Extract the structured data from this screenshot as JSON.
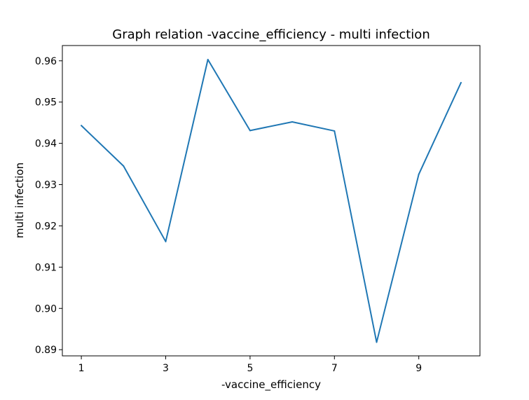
{
  "chart_data": {
    "type": "line",
    "title": "Graph relation -vaccine_efficiency - multi infection",
    "xlabel": "-vaccine_efficiency",
    "ylabel": "multi infection",
    "xlim": [
      0.55,
      10.45
    ],
    "ylim": [
      0.8885,
      0.9637
    ],
    "x_ticks": [
      1,
      3,
      5,
      7,
      9
    ],
    "x_tick_labels": [
      "1",
      "3",
      "5",
      "7",
      "9"
    ],
    "y_ticks": [
      0.89,
      0.9,
      0.91,
      0.92,
      0.93,
      0.94,
      0.95,
      0.96
    ],
    "y_tick_labels": [
      "0.89",
      "0.90",
      "0.91",
      "0.92",
      "0.93",
      "0.94",
      "0.95",
      "0.96"
    ],
    "grid": false,
    "series": [
      {
        "color": "#1f77b4",
        "x": [
          1,
          2,
          3,
          4,
          5,
          6,
          7,
          8,
          9,
          10
        ],
        "y": [
          0.9443,
          0.9345,
          0.9162,
          0.9603,
          0.9431,
          0.9452,
          0.943,
          0.8918,
          0.9325,
          0.9547
        ]
      }
    ]
  }
}
